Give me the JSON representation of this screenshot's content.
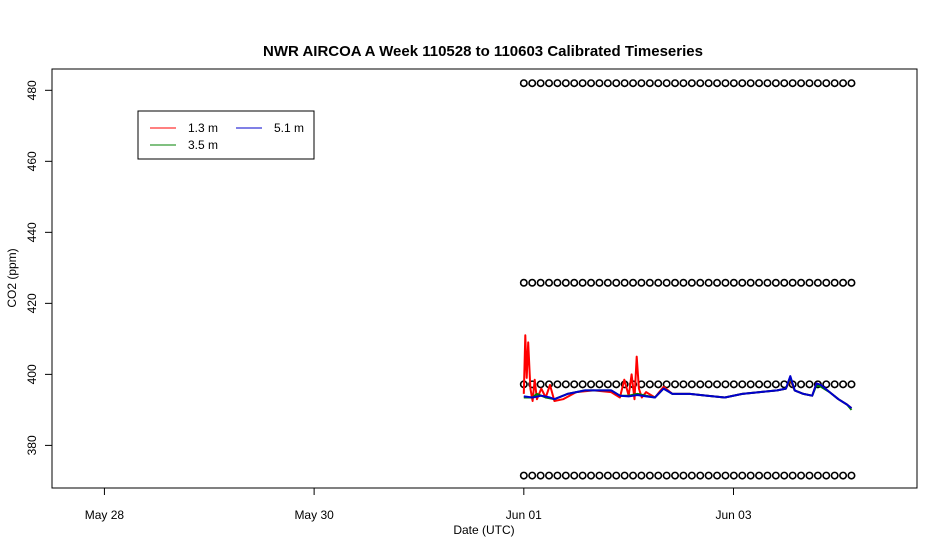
{
  "chart_data": {
    "type": "line",
    "title": "NWR AIRCOA A  Week 110528 to 110603  Calibrated Timeseries",
    "xlabel": "Date (UTC)",
    "ylabel": "CO2 (ppm)",
    "xlim": [
      "2011-05-27 12:00",
      "2011-06-04 18:00"
    ],
    "ylim": [
      368,
      486
    ],
    "grid": false,
    "legend_position": "top-left",
    "x_ticks": [
      {
        "label": "May 28",
        "value": "2011-05-28 00:00"
      },
      {
        "label": "May 30",
        "value": "2011-05-30 00:00"
      },
      {
        "label": "Jun 01",
        "value": "2011-06-01 00:00"
      },
      {
        "label": "Jun 03",
        "value": "2011-06-03 00:00"
      }
    ],
    "y_ticks": [
      380,
      400,
      420,
      440,
      460,
      480
    ],
    "legend": [
      {
        "name": "1.3 m",
        "color": "#ff0000",
        "column": 0
      },
      {
        "name": "3.5 m",
        "color": "#008000",
        "column": 0
      },
      {
        "name": "5.1 m",
        "color": "#0000cc",
        "column": 1
      }
    ],
    "series": [
      {
        "name": "1.3 m",
        "color": "#ff0000",
        "points": [
          [
            "2011-06-01 00:00",
            394.5
          ],
          [
            "2011-06-01 00:20",
            411
          ],
          [
            "2011-06-01 00:40",
            399
          ],
          [
            "2011-06-01 01:00",
            409
          ],
          [
            "2011-06-01 01:30",
            396
          ],
          [
            "2011-06-01 02:00",
            392.5
          ],
          [
            "2011-06-01 02:30",
            398.5
          ],
          [
            "2011-06-01 03:00",
            393
          ],
          [
            "2011-06-01 04:00",
            396
          ],
          [
            "2011-06-01 05:00",
            393.5
          ],
          [
            "2011-06-01 06:00",
            397
          ],
          [
            "2011-06-01 07:00",
            392.5
          ],
          [
            "2011-06-01 09:00",
            393
          ],
          [
            "2011-06-01 12:00",
            395
          ],
          [
            "2011-06-01 16:00",
            395.5
          ],
          [
            "2011-06-01 20:00",
            395
          ],
          [
            "2011-06-01 22:00",
            393.5
          ],
          [
            "2011-06-01 23:00",
            398.5
          ],
          [
            "2011-06-02 00:00",
            394
          ],
          [
            "2011-06-02 00:40",
            400
          ],
          [
            "2011-06-02 01:20",
            393
          ],
          [
            "2011-06-02 01:50",
            405
          ],
          [
            "2011-06-02 02:20",
            396
          ],
          [
            "2011-06-02 03:00",
            393.5
          ],
          [
            "2011-06-02 04:00",
            395
          ],
          [
            "2011-06-02 06:00",
            393.5
          ],
          [
            "2011-06-02 08:00",
            396.5
          ],
          [
            "2011-06-02 10:00",
            394.5
          ],
          [
            "2011-06-02 14:00",
            394.5
          ],
          [
            "2011-06-02 18:00",
            394
          ],
          [
            "2011-06-02 22:00",
            393.5
          ],
          [
            "2011-06-03 02:00",
            394.5
          ],
          [
            "2011-06-03 06:00",
            395
          ],
          [
            "2011-06-03 10:00",
            395.5
          ],
          [
            "2011-06-03 12:00",
            396
          ],
          [
            "2011-06-03 13:00",
            398.5
          ],
          [
            "2011-06-03 14:00",
            395.5
          ],
          [
            "2011-06-03 16:00",
            394.5
          ],
          [
            "2011-06-03 18:00",
            394
          ],
          [
            "2011-06-03 19:00",
            397.5
          ],
          [
            "2011-06-03 20:00",
            397
          ],
          [
            "2011-06-03 22:00",
            395
          ],
          [
            "2011-06-04 00:00",
            393
          ],
          [
            "2011-06-04 02:00",
            391.5
          ],
          [
            "2011-06-04 03:00",
            390.5
          ]
        ]
      },
      {
        "name": "3.5 m",
        "color": "#008000",
        "points": [
          [
            "2011-06-01 00:00",
            393.5
          ],
          [
            "2011-06-01 02:00",
            393.5
          ],
          [
            "2011-06-01 03:00",
            394.5
          ],
          [
            "2011-06-01 05:00",
            393.5
          ],
          [
            "2011-06-01 07:00",
            393
          ],
          [
            "2011-06-01 10:00",
            394.5
          ],
          [
            "2011-06-01 14:00",
            395.5
          ],
          [
            "2011-06-01 20:00",
            395.5
          ],
          [
            "2011-06-01 22:00",
            394
          ],
          [
            "2011-06-02 00:00",
            394
          ],
          [
            "2011-06-02 02:00",
            394.5
          ],
          [
            "2011-06-02 04:00",
            394
          ],
          [
            "2011-06-02 06:00",
            393.5
          ],
          [
            "2011-06-02 08:00",
            396
          ],
          [
            "2011-06-02 10:00",
            394.5
          ],
          [
            "2011-06-02 14:00",
            394.5
          ],
          [
            "2011-06-02 18:00",
            394
          ],
          [
            "2011-06-02 22:00",
            393.5
          ],
          [
            "2011-06-03 02:00",
            394.5
          ],
          [
            "2011-06-03 06:00",
            395
          ],
          [
            "2011-06-03 10:00",
            395.5
          ],
          [
            "2011-06-03 12:00",
            396
          ],
          [
            "2011-06-03 13:00",
            399
          ],
          [
            "2011-06-03 14:00",
            395.5
          ],
          [
            "2011-06-03 16:00",
            394.5
          ],
          [
            "2011-06-03 18:00",
            394
          ],
          [
            "2011-06-03 19:00",
            397
          ],
          [
            "2011-06-03 20:00",
            396.5
          ],
          [
            "2011-06-03 22:00",
            395
          ],
          [
            "2011-06-04 00:00",
            393
          ],
          [
            "2011-06-04 02:00",
            391.5
          ],
          [
            "2011-06-04 03:00",
            390
          ]
        ]
      },
      {
        "name": "5.1 m",
        "color": "#0000cc",
        "points": [
          [
            "2011-06-01 00:00",
            393.8
          ],
          [
            "2011-06-01 02:00",
            393.5
          ],
          [
            "2011-06-01 04:00",
            394
          ],
          [
            "2011-06-01 06:00",
            393.5
          ],
          [
            "2011-06-01 07:00",
            393
          ],
          [
            "2011-06-01 10:00",
            394.5
          ],
          [
            "2011-06-01 14:00",
            395.5
          ],
          [
            "2011-06-01 20:00",
            395.5
          ],
          [
            "2011-06-01 22:00",
            394
          ],
          [
            "2011-06-02 00:00",
            393.8
          ],
          [
            "2011-06-02 02:00",
            394.2
          ],
          [
            "2011-06-02 04:00",
            393.8
          ],
          [
            "2011-06-02 06:00",
            393.5
          ],
          [
            "2011-06-02 08:00",
            396
          ],
          [
            "2011-06-02 10:00",
            394.5
          ],
          [
            "2011-06-02 14:00",
            394.5
          ],
          [
            "2011-06-02 18:00",
            394
          ],
          [
            "2011-06-02 22:00",
            393.5
          ],
          [
            "2011-06-03 02:00",
            394.5
          ],
          [
            "2011-06-03 06:00",
            395
          ],
          [
            "2011-06-03 10:00",
            395.5
          ],
          [
            "2011-06-03 12:00",
            396
          ],
          [
            "2011-06-03 13:00",
            399.5
          ],
          [
            "2011-06-03 14:00",
            395.5
          ],
          [
            "2011-06-03 16:00",
            394.5
          ],
          [
            "2011-06-03 18:00",
            394
          ],
          [
            "2011-06-03 19:00",
            397.5
          ],
          [
            "2011-06-03 20:00",
            397
          ],
          [
            "2011-06-03 22:00",
            395
          ],
          [
            "2011-06-04 00:00",
            393
          ],
          [
            "2011-06-04 02:00",
            391.5
          ],
          [
            "2011-06-04 03:00",
            390.5
          ]
        ]
      },
      {
        "name": "calibration standards",
        "marker": "open-circle",
        "color": "#000000",
        "levels_ppm": [
          371.5,
          397.2,
          425.8,
          482
        ],
        "start": "2011-06-01 00:00",
        "end": "2011-06-04 03:00",
        "times_per_level": 40
      }
    ]
  }
}
